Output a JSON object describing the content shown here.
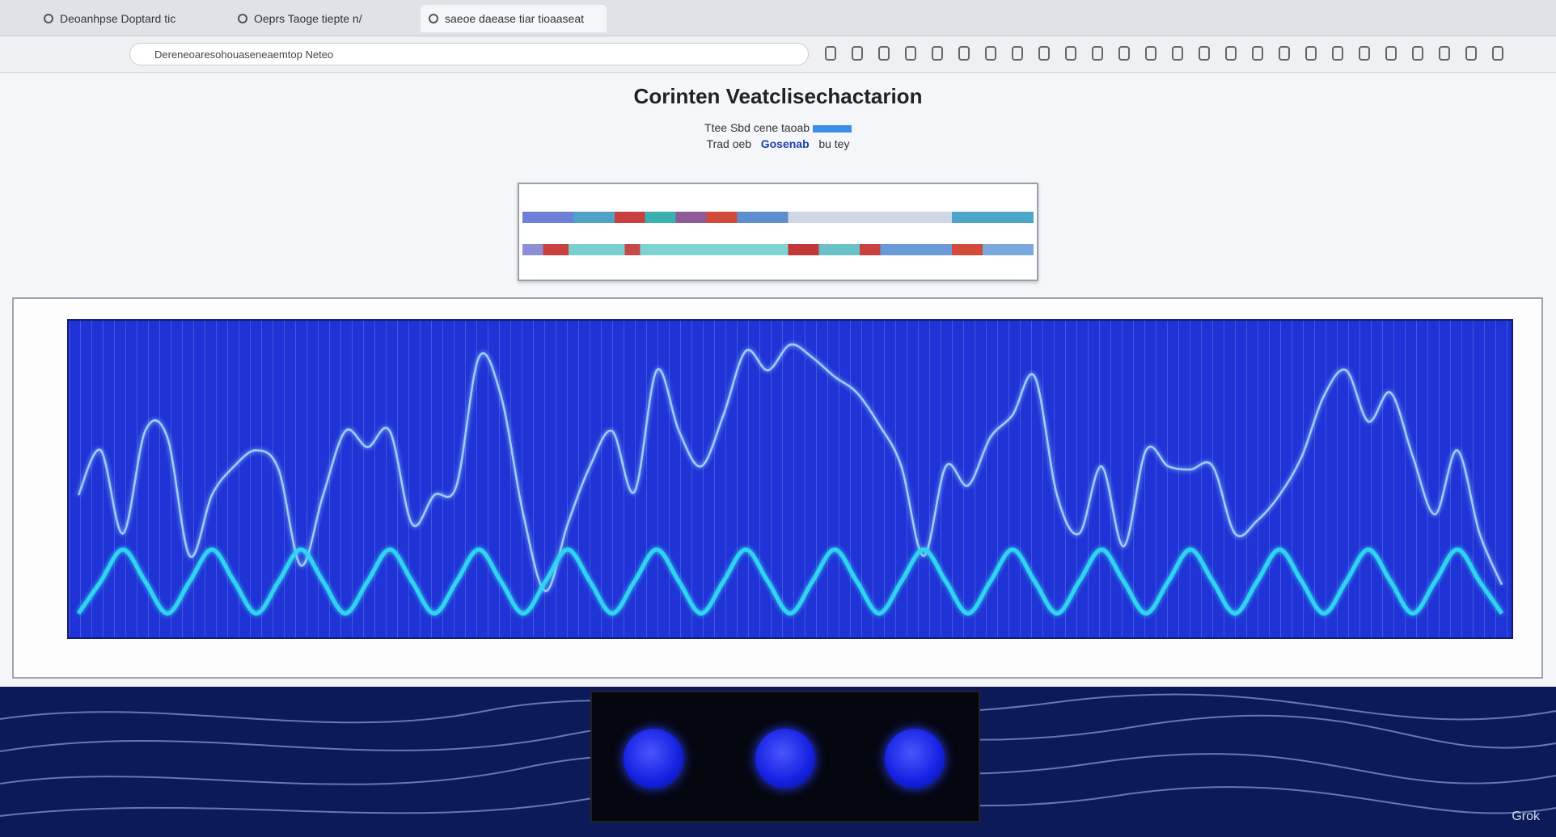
{
  "browser": {
    "tabs": [
      "Deoanhpse Doptard tic",
      "Oeprs Taoge tiepte n/",
      "saeoe daease tiar tioaaseat"
    ],
    "url": "Dereneoaresohouaseneaemtop Neteo"
  },
  "chart_data": {
    "type": "line",
    "title": "Corinten Veatclisechactarion",
    "subtitle": [
      "Ttee Sbd cene taoab",
      "Trad oeb",
      "Gosenab",
      "bu tey"
    ],
    "x": [
      0,
      1,
      2,
      3,
      4,
      5,
      6,
      7,
      8,
      9,
      10,
      11,
      12,
      13,
      14,
      15,
      16,
      17,
      18,
      19,
      20,
      21,
      22,
      23,
      24,
      25,
      26,
      27,
      28,
      29,
      30,
      31,
      32,
      33,
      34,
      35,
      36,
      37,
      38,
      39,
      40,
      41,
      42,
      43,
      44,
      45,
      46,
      47,
      48,
      49,
      50,
      51,
      52,
      53,
      54,
      55,
      56,
      57,
      58,
      59,
      60,
      61,
      62,
      63,
      64
    ],
    "xlim": [
      0,
      64
    ],
    "ylim": [
      0,
      100
    ],
    "series": [
      {
        "color": "#9ccfff",
        "values": [
          45,
          59,
          33,
          65,
          63,
          26,
          45,
          54,
          59,
          53,
          23,
          45,
          65,
          60,
          65,
          36,
          45,
          48,
          88,
          76,
          39,
          15,
          36,
          54,
          65,
          46,
          84,
          65,
          54,
          70,
          90,
          84,
          92,
          88,
          82,
          77,
          67,
          54,
          26,
          54,
          48,
          63,
          70,
          82,
          45,
          33,
          54,
          29,
          59,
          54,
          53,
          54,
          33,
          37,
          45,
          57,
          76,
          84,
          68,
          77,
          57,
          39,
          59,
          33,
          17
        ]
      },
      {
        "color": "#2fd4f2",
        "values": [
          8,
          18,
          28,
          18,
          8,
          18,
          28,
          18,
          8,
          18,
          28,
          18,
          8,
          18,
          28,
          18,
          8,
          18,
          28,
          18,
          8,
          18,
          28,
          18,
          8,
          18,
          28,
          18,
          8,
          18,
          28,
          18,
          8,
          18,
          28,
          18,
          8,
          18,
          28,
          18,
          8,
          18,
          28,
          18,
          8,
          18,
          28,
          18,
          8,
          18,
          28,
          18,
          8,
          18,
          28,
          18,
          8,
          18,
          28,
          18,
          8,
          18,
          28,
          18,
          8
        ]
      }
    ]
  },
  "watermark": "Grok"
}
